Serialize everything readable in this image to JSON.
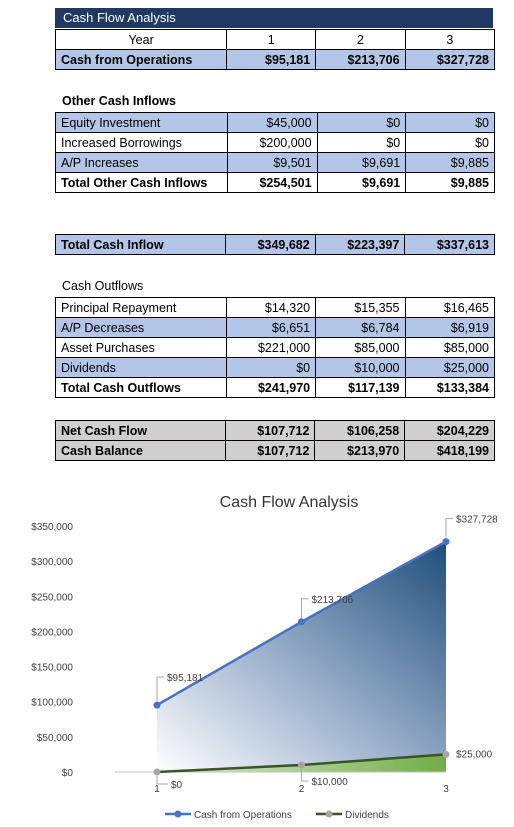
{
  "table_title": "Cash Flow Analysis",
  "header": {
    "label": "Year",
    "years": [
      "1",
      "2",
      "3"
    ]
  },
  "ops": {
    "label": "Cash from Operations",
    "values": [
      "$95,181",
      "$213,706",
      "$327,728"
    ]
  },
  "other_inflows": {
    "heading": "Other Cash Inflows",
    "rows": [
      {
        "label": "Equity Investment",
        "values": [
          "$45,000",
          "$0",
          "$0"
        ]
      },
      {
        "label": "Increased Borrowings",
        "values": [
          "$200,000",
          "$0",
          "$0"
        ]
      },
      {
        "label": "A/P Increases",
        "values": [
          "$9,501",
          "$9,691",
          "$9,885"
        ]
      }
    ],
    "total": {
      "label": "Total Other Cash Inflows",
      "values": [
        "$254,501",
        "$9,691",
        "$9,885"
      ]
    }
  },
  "total_inflow": {
    "label": "Total Cash Inflow",
    "values": [
      "$349,682",
      "$223,397",
      "$337,613"
    ]
  },
  "outflows": {
    "heading": "Cash Outflows",
    "rows": [
      {
        "label": "Principal Repayment",
        "values": [
          "$14,320",
          "$15,355",
          "$16,465"
        ]
      },
      {
        "label": "A/P Decreases",
        "values": [
          "$6,651",
          "$6,784",
          "$6,919"
        ]
      },
      {
        "label": "Asset Purchases",
        "values": [
          "$221,000",
          "$85,000",
          "$85,000"
        ]
      },
      {
        "label": "Dividends",
        "values": [
          "$0",
          "$10,000",
          "$25,000"
        ]
      }
    ],
    "total": {
      "label": "Total Cash Outflows",
      "values": [
        "$241,970",
        "$117,139",
        "$133,384"
      ]
    }
  },
  "net": {
    "rows": [
      {
        "label": "Net Cash Flow",
        "values": [
          "$107,712",
          "$106,258",
          "$204,229"
        ]
      },
      {
        "label": "Cash Balance",
        "values": [
          "$107,712",
          "$213,970",
          "$418,199"
        ]
      }
    ]
  },
  "chart_data": {
    "type": "area",
    "title": "Cash Flow Analysis",
    "categories": [
      "1",
      "2",
      "3"
    ],
    "ylim": [
      0,
      350000
    ],
    "yticks": [
      0,
      50000,
      100000,
      150000,
      200000,
      250000,
      300000,
      350000
    ],
    "ytick_labels": [
      "$0",
      "$50,000",
      "$100,000",
      "$150,000",
      "$200,000",
      "$250,000",
      "$300,000",
      "$350,000"
    ],
    "series": [
      {
        "name": "Cash from Operations",
        "values": [
          95181,
          213706,
          327728
        ],
        "labels": [
          "$95,181",
          "$213,706",
          "$327,728"
        ],
        "color": "#4472c4"
      },
      {
        "name": "Dividends",
        "values": [
          0,
          10000,
          25000
        ],
        "labels": [
          "$0",
          "$10,000",
          "$25,000"
        ],
        "color": "#375623"
      }
    ],
    "legend": "bottom",
    "grid": false
  }
}
